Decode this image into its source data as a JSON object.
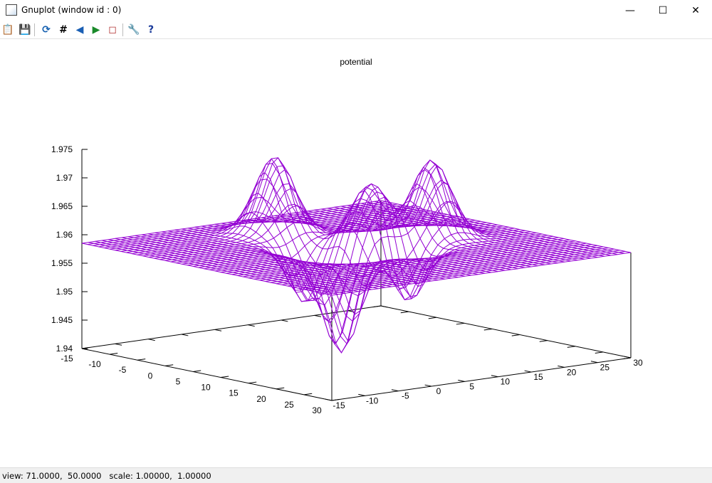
{
  "window": {
    "title": "Gnuplot (window id : 0)",
    "minimize": "—",
    "maximize": "☐",
    "close": "✕"
  },
  "toolbar": [
    {
      "name": "copy-clipboard-icon",
      "glyph": "📋"
    },
    {
      "name": "save-icon",
      "glyph": "💾"
    },
    {
      "name": "replot-icon",
      "glyph": "⟳"
    },
    {
      "name": "grid-icon",
      "glyph": "#"
    },
    {
      "name": "zoom-previous-icon",
      "glyph": "◀"
    },
    {
      "name": "zoom-next-icon",
      "glyph": "▶"
    },
    {
      "name": "autoscale-icon",
      "glyph": "◻"
    },
    {
      "name": "options-wrench-icon",
      "glyph": "🔧"
    },
    {
      "name": "help-icon",
      "glyph": "?"
    }
  ],
  "status": "view: 71.0000,  50.0000   scale: 1.00000,  1.00000",
  "chart_data": {
    "type": "surface",
    "style": "wireframe",
    "title": "potential",
    "color": "#9400d3",
    "xrange": [
      -15,
      30
    ],
    "yrange": [
      -15,
      30
    ],
    "zrange": [
      1.94,
      1.975
    ],
    "xticks": [
      "-15",
      "-10",
      "-5",
      "0",
      "5",
      "10",
      "15",
      "20",
      "25",
      "30"
    ],
    "yticks": [
      "-15",
      "-10",
      "-5",
      "0",
      "5",
      "10",
      "15",
      "20",
      "25",
      "30"
    ],
    "zticks": [
      "1.94",
      "1.945",
      "1.95",
      "1.955",
      "1.96",
      "1.965",
      "1.97",
      "1.975"
    ],
    "view": [
      71,
      50
    ],
    "baseline_z": 1.9585,
    "max_z": 1.972,
    "min_z": 1.941
  }
}
